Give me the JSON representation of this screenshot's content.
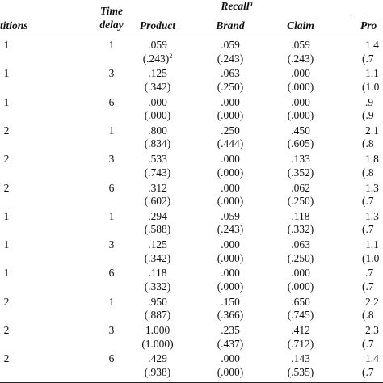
{
  "header": {
    "group_label": "Recall",
    "group_note": "a",
    "columns": [
      "titions",
      [
        "Time",
        "delay"
      ],
      "Product",
      "Brand",
      "Claim",
      "Pro"
    ]
  },
  "rows": [
    {
      "cells": [
        "1",
        "1"
      ],
      "values": [
        [
          ".059",
          "(.243)"
        ],
        [
          ".059",
          "(.243)"
        ],
        [
          ".059",
          "(.243)"
        ],
        [
          "1.4",
          "(.7"
        ]
      ],
      "note": "2"
    },
    {
      "cells": [
        "1",
        "3"
      ],
      "values": [
        [
          ".125",
          "(.342)"
        ],
        [
          ".063",
          "(.250)"
        ],
        [
          ".000",
          "(.000)"
        ],
        [
          "1.1",
          "(1.0"
        ]
      ]
    },
    {
      "cells": [
        "1",
        "6"
      ],
      "values": [
        [
          ".000",
          "(.000)"
        ],
        [
          ".000",
          "(.000)"
        ],
        [
          ".000",
          "(.000)"
        ],
        [
          ".9",
          "(.9"
        ]
      ]
    },
    {
      "cells": [
        "2",
        "1"
      ],
      "values": [
        [
          ".800",
          "(.834)"
        ],
        [
          ".250",
          "(.444)"
        ],
        [
          ".450",
          "(.605)"
        ],
        [
          "2.1",
          "(.8"
        ]
      ]
    },
    {
      "cells": [
        "2",
        "3"
      ],
      "values": [
        [
          ".533",
          "(.743)"
        ],
        [
          ".000",
          "(.000)"
        ],
        [
          ".133",
          "(.352)"
        ],
        [
          "1.8",
          "(.8"
        ]
      ]
    },
    {
      "cells": [
        "2",
        "6"
      ],
      "values": [
        [
          ".312",
          "(.602)"
        ],
        [
          ".000",
          "(.000)"
        ],
        [
          ".062",
          "(.250)"
        ],
        [
          "1.3",
          "(.7"
        ]
      ]
    },
    {
      "cells": [
        "1",
        "1"
      ],
      "values": [
        [
          ".294",
          "(.588)"
        ],
        [
          ".059",
          "(.243)"
        ],
        [
          ".118",
          "(.332)"
        ],
        [
          "1.3",
          "(.7"
        ]
      ]
    },
    {
      "cells": [
        "1",
        "3"
      ],
      "values": [
        [
          ".125",
          "(.342)"
        ],
        [
          ".000",
          "(.000)"
        ],
        [
          ".063",
          "(.250)"
        ],
        [
          "1.1",
          "(1.0"
        ]
      ]
    },
    {
      "cells": [
        "1",
        "6"
      ],
      "values": [
        [
          ".118",
          "(.332)"
        ],
        [
          ".000",
          "(.000)"
        ],
        [
          ".000",
          "(.000)"
        ],
        [
          ".7",
          "(.7"
        ]
      ]
    },
    {
      "cells": [
        "2",
        "1"
      ],
      "values": [
        [
          ".950",
          "(.887)"
        ],
        [
          ".150",
          "(.366)"
        ],
        [
          ".650",
          "(.745)"
        ],
        [
          "2.2",
          "(.8"
        ]
      ]
    },
    {
      "cells": [
        "2",
        "3"
      ],
      "values": [
        [
          "1.000",
          "(1.000)"
        ],
        [
          ".235",
          "(.437)"
        ],
        [
          ".412",
          "(.712)"
        ],
        [
          "2.3",
          "(.7"
        ]
      ]
    },
    {
      "cells": [
        "2",
        "6"
      ],
      "values": [
        [
          ".429",
          "(.938)"
        ],
        [
          ".000",
          "(.000)"
        ],
        [
          ".143",
          "(.535)"
        ],
        [
          "1.4",
          "(.7"
        ]
      ]
    }
  ]
}
